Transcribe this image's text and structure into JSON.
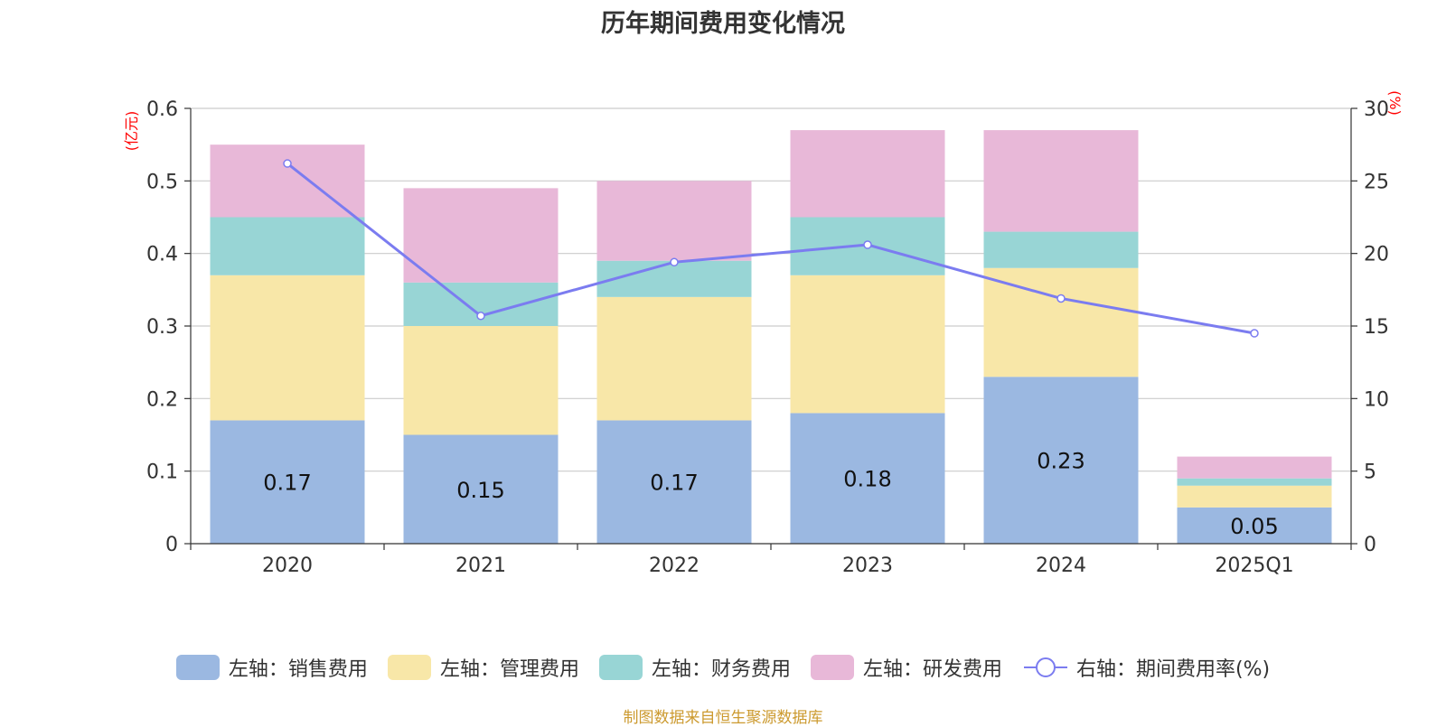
{
  "chart_data": {
    "type": "bar",
    "title": "历年期间费用变化情况",
    "categories": [
      "2020",
      "2021",
      "2022",
      "2023",
      "2024",
      "2025Q1"
    ],
    "left_unit": "(亿元)",
    "right_unit": "(%)",
    "ylim": [
      0,
      0.6
    ],
    "yticks": [
      "0",
      "0.1",
      "0.2",
      "0.3",
      "0.4",
      "0.5",
      "0.6"
    ],
    "y2lim": [
      0,
      30
    ],
    "y2ticks": [
      "0",
      "5",
      "10",
      "15",
      "20",
      "25",
      "30"
    ],
    "grid": true,
    "series": [
      {
        "name": "左轴：销售费用",
        "axis": "left",
        "stacked": true,
        "color": "#9bb8e1",
        "values": [
          0.17,
          0.15,
          0.17,
          0.18,
          0.23,
          0.05
        ],
        "labels": [
          "0.17",
          "0.15",
          "0.17",
          "0.18",
          "0.23",
          "0.05"
        ]
      },
      {
        "name": "左轴：管理费用",
        "axis": "left",
        "stacked": true,
        "color": "#f8e7a8",
        "values": [
          0.2,
          0.15,
          0.17,
          0.19,
          0.15,
          0.03
        ]
      },
      {
        "name": "左轴：财务费用",
        "axis": "left",
        "stacked": true,
        "color": "#98d5d5",
        "values": [
          0.08,
          0.06,
          0.05,
          0.08,
          0.05,
          0.01
        ]
      },
      {
        "name": "左轴：研发费用",
        "axis": "left",
        "stacked": true,
        "color": "#e8b8d8",
        "values": [
          0.1,
          0.13,
          0.11,
          0.12,
          0.14,
          0.03
        ]
      },
      {
        "name": "右轴：期间费用率(%)",
        "axis": "right",
        "type": "line",
        "color": "#7b7cf0",
        "values": [
          26.2,
          15.7,
          19.4,
          20.6,
          16.9,
          14.5
        ]
      }
    ],
    "legend_position": "bottom"
  },
  "source_text": "制图数据来自恒生聚源数据库"
}
